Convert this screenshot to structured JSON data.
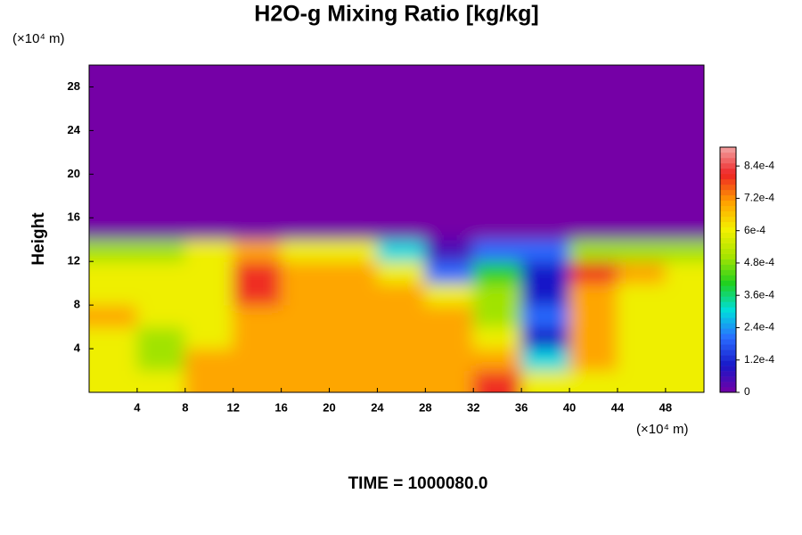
{
  "chart_data": {
    "type": "heatmap",
    "title": "H2O-g Mixing Ratio [kg/kg]",
    "ylabel": "Height",
    "xunit": "(×10⁴ m)",
    "yunit": "(×10⁴ m)",
    "footer": "TIME = 1000080.0",
    "x": [
      2,
      6,
      10,
      14,
      18,
      22,
      26,
      30,
      34,
      38,
      42,
      46,
      50
    ],
    "y": [
      1,
      3,
      5,
      7,
      9,
      11,
      13,
      15,
      17,
      19,
      21,
      23,
      25,
      27,
      29
    ],
    "z": [
      [
        0.0006,
        0.0006,
        0.0007,
        0.0007,
        0.0007,
        0.0007,
        0.0007,
        0.0007,
        0.0008,
        0.0006,
        0.0006,
        0.0006,
        0.0006
      ],
      [
        0.0006,
        0.0005,
        0.0007,
        0.0007,
        0.0007,
        0.0007,
        0.0007,
        0.0007,
        0.0007,
        0.0003,
        0.0007,
        0.0006,
        0.0006
      ],
      [
        0.0006,
        0.0005,
        0.0006,
        0.0007,
        0.0007,
        0.0007,
        0.0007,
        0.0007,
        0.0006,
        0.0001,
        0.0007,
        0.0006,
        0.0006
      ],
      [
        0.0007,
        0.0006,
        0.0006,
        0.0007,
        0.0007,
        0.0007,
        0.0007,
        0.0007,
        0.0005,
        0.0002,
        0.0007,
        0.0006,
        0.0006
      ],
      [
        0.0006,
        0.0006,
        0.0006,
        0.0008,
        0.0007,
        0.0007,
        0.0007,
        0.0006,
        0.0005,
        0.0001,
        0.0007,
        0.0006,
        0.0006
      ],
      [
        0.0006,
        0.0006,
        0.0006,
        0.0008,
        0.0007,
        0.0007,
        0.0006,
        0.0002,
        0.0004,
        0.0001,
        0.0008,
        0.0007,
        0.0006
      ],
      [
        0.0005,
        0.0005,
        0.0006,
        0.0007,
        0.0006,
        0.0006,
        0.0003,
        5e-05,
        0.0002,
        0.0002,
        0.0005,
        0.0005,
        0.0005
      ],
      [
        0,
        0,
        0,
        0,
        0,
        0,
        0,
        0,
        0,
        0,
        0,
        0,
        0
      ],
      [
        0,
        0,
        0,
        0,
        0,
        0,
        0,
        0,
        0,
        0,
        0,
        0,
        0
      ],
      [
        0,
        0,
        0,
        0,
        0,
        0,
        0,
        0,
        0,
        0,
        0,
        0,
        0
      ],
      [
        0,
        0,
        0,
        0,
        0,
        0,
        0,
        0,
        0,
        0,
        0,
        0,
        0
      ],
      [
        0,
        0,
        0,
        0,
        0,
        0,
        0,
        0,
        0,
        0,
        0,
        0,
        0
      ],
      [
        0,
        0,
        0,
        0,
        0,
        0,
        0,
        0,
        0,
        0,
        0,
        0,
        0
      ],
      [
        0,
        0,
        0,
        0,
        0,
        0,
        0,
        0,
        0,
        0,
        0,
        0,
        0
      ],
      [
        0,
        0,
        0,
        0,
        0,
        0,
        0,
        0,
        0,
        0,
        0,
        0,
        0
      ]
    ],
    "xlim": [
      0,
      51.2
    ],
    "ylim": [
      0,
      30
    ],
    "xticks": [
      4,
      8,
      12,
      16,
      20,
      24,
      28,
      32,
      36,
      40,
      44,
      48
    ],
    "yticks": [
      4,
      8,
      12,
      16,
      20,
      24,
      28
    ],
    "zlim": [
      0,
      0.00091
    ],
    "zticks": [
      0,
      {
        "value": 0.00012,
        "label": "1.2e-4"
      },
      {
        "value": 0.00024,
        "label": "2.4e-4"
      },
      {
        "value": 0.00036,
        "label": "3.6e-4"
      },
      {
        "value": 0.00048,
        "label": "4.8e-4"
      },
      {
        "value": 0.0006,
        "label": "6e-4"
      },
      {
        "value": 0.00072,
        "label": "7.2e-4"
      },
      {
        "value": 0.00084,
        "label": "8.4e-4"
      }
    ],
    "colormap": [
      "#7400a6",
      "#1818c8",
      "#2a6cff",
      "#00dede",
      "#20d020",
      "#a8e400",
      "#f4f000",
      "#ffa000",
      "#ee2424",
      "#f4a4a4"
    ]
  }
}
